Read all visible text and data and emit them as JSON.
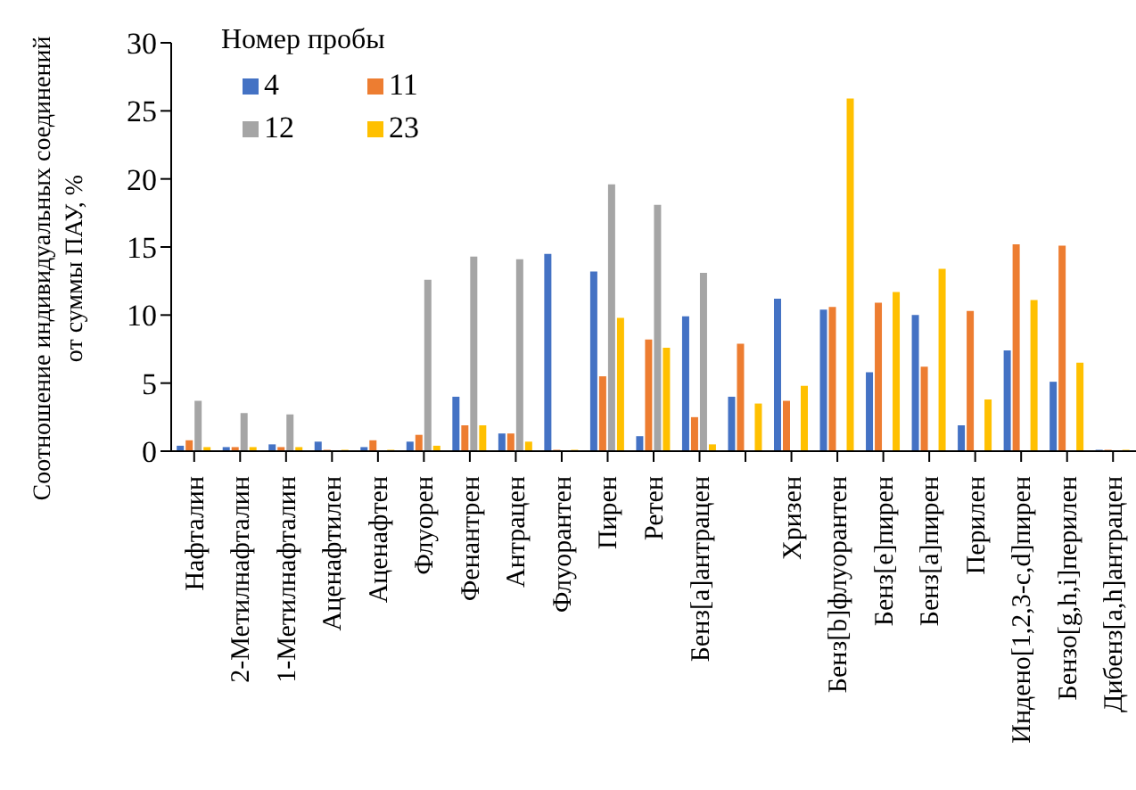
{
  "chart_data": {
    "type": "bar",
    "ylabel": "Соотношение индивидуальных соединений от суммы ПАУ, %",
    "legend_title": "Номер пробы",
    "legend": "top left",
    "grid": false,
    "categories": [
      "Нафталин",
      "2-Метилнафталин",
      "1-Метилнафталин",
      "Аценафтилен",
      "Аценафтен",
      "Флуорен",
      "Фенантрен",
      "Антрацен",
      "Флуорантен",
      "Пирен",
      "Ретен",
      "Бенз[a]антрацен",
      null,
      "Хризен",
      "Бенз[b]флуорантен",
      "Бенз[e]пирен",
      "Бенз[a]пирен",
      "Перилен",
      "Индено[1,2,3-c,d]пирен",
      "Бензо[g,h,i]перилен",
      "Дибенз[a,h]антрацен"
    ],
    "series": [
      {
        "name": "4",
        "color": "#4472c4",
        "values": [
          0.4,
          0.3,
          0.5,
          0.7,
          0.3,
          0.7,
          4.0,
          1.3,
          14.5,
          13.2,
          1.1,
          9.9,
          4.0,
          11.2,
          10.4,
          5.8,
          10.0,
          1.9,
          7.4,
          5.1,
          0.1
        ]
      },
      {
        "name": "11",
        "color": "#ed7d31",
        "values": [
          0.8,
          0.3,
          0.3,
          0.1,
          0.8,
          1.2,
          1.9,
          1.3,
          0.1,
          5.5,
          8.2,
          2.5,
          7.9,
          3.7,
          10.6,
          10.9,
          6.2,
          10.3,
          15.2,
          15.1,
          0.1
        ]
      },
      {
        "name": "12",
        "color": "#a5a5a5",
        "values": [
          3.7,
          2.8,
          2.7,
          null,
          null,
          12.6,
          14.3,
          14.1,
          null,
          19.6,
          18.1,
          13.1,
          0,
          0,
          0,
          0,
          0,
          0,
          0,
          0,
          null
        ]
      },
      {
        "name": "23",
        "color": "#ffc000",
        "values": [
          0.3,
          0.3,
          0.3,
          0.1,
          0.1,
          0.4,
          1.9,
          0.7,
          0.1,
          9.8,
          7.6,
          0.5,
          3.5,
          4.8,
          25.9,
          11.7,
          13.4,
          3.8,
          11.1,
          6.5,
          0.1
        ]
      }
    ],
    "ylim": [
      0,
      30
    ],
    "yticks": [
      0,
      5,
      10,
      15,
      20,
      25,
      30
    ]
  }
}
